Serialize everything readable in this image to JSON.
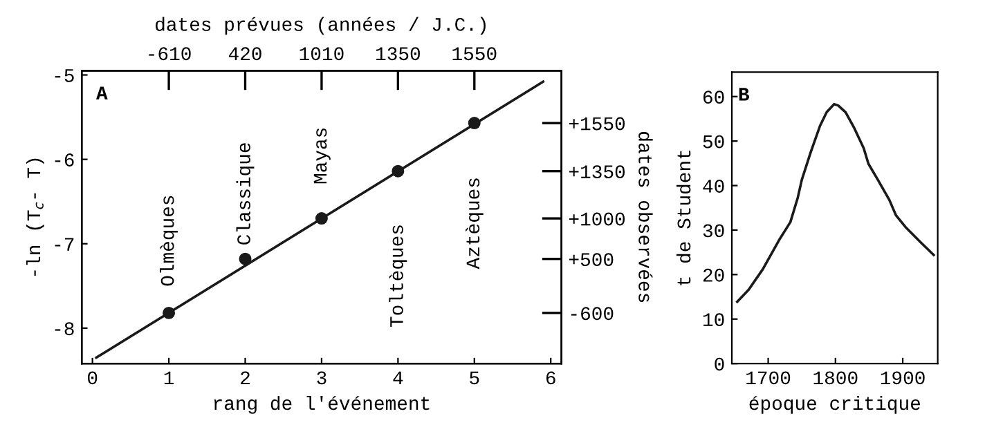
{
  "chart_data": [
    {
      "type": "line",
      "xlabel": "rang de l'événement",
      "ylabel": "-ln (T$_{c}$- T)",
      "y2label": "dates observées",
      "x2label": "dates prévues (années / J.C.)",
      "xlim": [
        -0.14,
        6.14
      ],
      "xticks": [
        0,
        1,
        2,
        3,
        4,
        5,
        6
      ],
      "ylim": [
        -8.42,
        -4.95
      ],
      "yticks": [
        -8,
        -7,
        -6,
        -5
      ],
      "series": [
        {
          "type": "line",
          "color": "#1a1a1a",
          "x": [
            0.05,
            5.9
          ],
          "values": [
            -8.35,
            -5.08
          ]
        },
        {
          "type": "scatter",
          "color": "#1a1a1a",
          "marker": "circle",
          "x": [
            1,
            2,
            3,
            4,
            5
          ],
          "values": [
            -7.82,
            -7.18,
            -6.7,
            -6.14,
            -5.57
          ]
        }
      ],
      "annotations": [
        "A",
        "Olmèques",
        "Classique",
        "Mayas",
        "Toltèques",
        "Aztèques",
        "-610",
        "420",
        "1010",
        "1350",
        "1550",
        "-600",
        "+500",
        "+1000",
        "+1350",
        "+1550"
      ],
      "grid": false,
      "legend": false
    },
    {
      "type": "line",
      "xlabel": "époque critique",
      "ylabel": "t de Student",
      "xlim": [
        1646,
        1952
      ],
      "xticks": [
        1700,
        1800,
        1900
      ],
      "ylim": [
        0,
        65.5
      ],
      "yticks": [
        0,
        10,
        20,
        30,
        40,
        50,
        60
      ],
      "series": [
        {
          "color": "#1a1a1a",
          "x": [
            1654,
            1671,
            1692,
            1716,
            1733,
            1744,
            1750,
            1763,
            1777,
            1787,
            1798,
            1804,
            1815,
            1828,
            1842,
            1849,
            1863,
            1880,
            1890,
            1904,
            1927,
            1946
          ],
          "values": [
            13.9,
            16.6,
            21.2,
            27.7,
            31.8,
            37.3,
            41.3,
            47.4,
            53.4,
            56.5,
            58.3,
            58.0,
            56.5,
            52.9,
            48.4,
            44.9,
            41.3,
            36.8,
            33.3,
            30.7,
            27.2,
            24.4
          ]
        }
      ],
      "annotations": [
        "B"
      ],
      "grid": false,
      "legend": false
    }
  ]
}
